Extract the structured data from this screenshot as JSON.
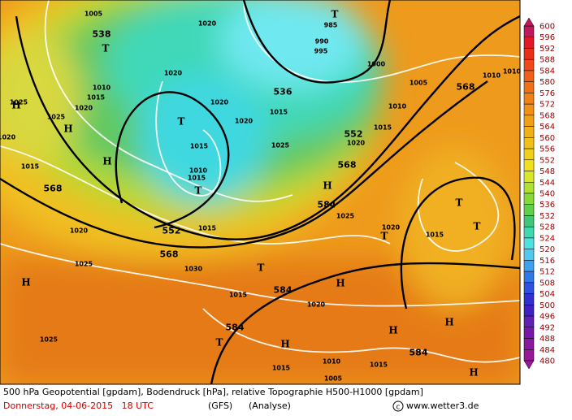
{
  "map": {
    "geopotential_labels": [
      "538",
      "536",
      "552",
      "568",
      "568",
      "568",
      "552",
      "568",
      "584",
      "584",
      "584",
      "584"
    ],
    "isobar_labels": [
      "1005",
      "1020",
      "990",
      "995",
      "985",
      "1000",
      "1005",
      "1010",
      "1010",
      "1015",
      "1020",
      "1025",
      "1025",
      "1020",
      "1020",
      "1015",
      "1020",
      "1010",
      "1015",
      "1020",
      "1025",
      "1015",
      "1010",
      "1015",
      "1015",
      "1020",
      "1025",
      "1020",
      "1015",
      "1020",
      "1025",
      "1030",
      "1015",
      "1015",
      "1020",
      "1025",
      "1015",
      "1010",
      "1005",
      "1015",
      "1010"
    ],
    "high_centers": [
      "H",
      "H",
      "H",
      "H",
      "H",
      "H",
      "H",
      "H",
      "H",
      "H"
    ],
    "low_centers": [
      "T",
      "T",
      "T",
      "T",
      "T",
      "T",
      "T",
      "T",
      "T"
    ]
  },
  "legend": {
    "scale": [
      "600",
      "596",
      "592",
      "588",
      "584",
      "580",
      "576",
      "572",
      "568",
      "564",
      "560",
      "556",
      "552",
      "548",
      "544",
      "540",
      "536",
      "532",
      "528",
      "524",
      "520",
      "516",
      "512",
      "508",
      "504",
      "500",
      "496",
      "492",
      "488",
      "484",
      "480"
    ]
  },
  "footer": {
    "description": "500 hPa Geopotential [gpdam], Bodendruck [hPa], relative Topographie H500-H1000 [gpdam]",
    "date": "Donnerstag, 04-06-2015   18 UTC",
    "model": "(GFS)",
    "run": "(Analyse)",
    "copyright": "www.wetter3.de"
  }
}
